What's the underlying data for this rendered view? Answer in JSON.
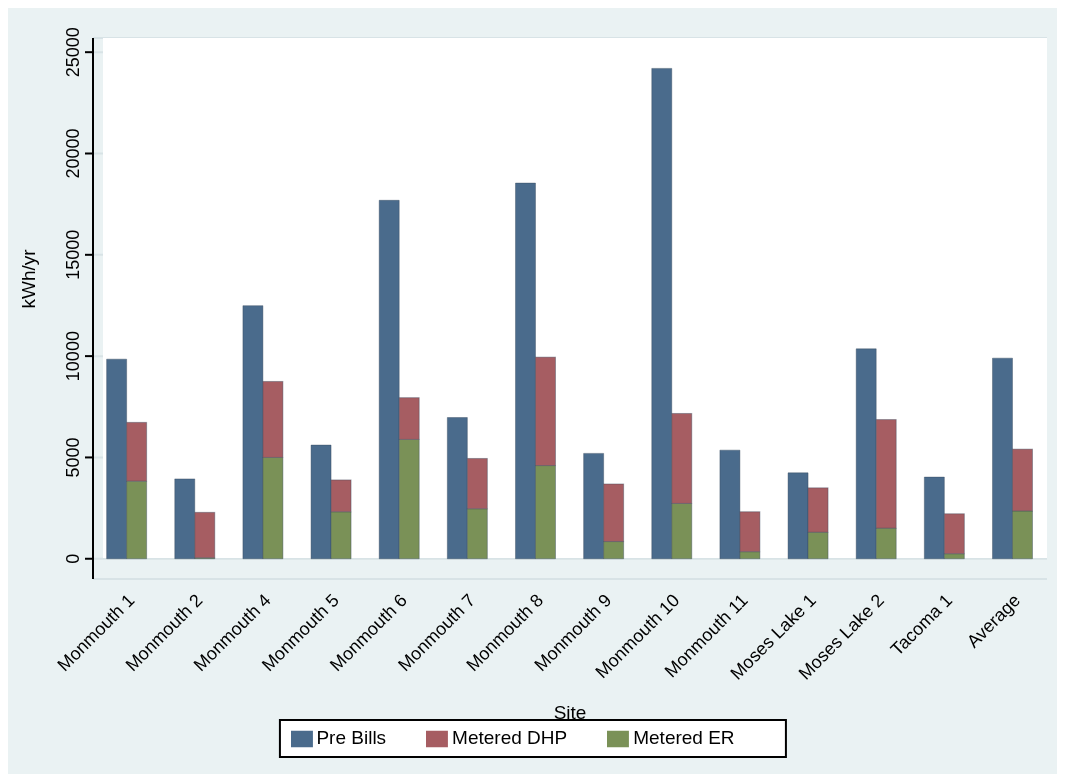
{
  "chart_data": {
    "type": "bar",
    "xlabel": "Site",
    "ylabel": "kWh/yr",
    "categories": [
      "Monmouth 1",
      "Monmouth 2",
      "Monmouth 4",
      "Monmouth 5",
      "Monmouth 6",
      "Monmouth 7",
      "Monmouth 8",
      "Monmouth 9",
      "Monmouth 10",
      "Monmouth 11",
      "Moses Lake 1",
      "Moses Lake 2",
      "Tacoma 1",
      "Average"
    ],
    "series": [
      {
        "name": "Pre Bills",
        "color": "#4a6b8c",
        "values": [
          9850,
          3940,
          12490,
          5610,
          17690,
          6970,
          18540,
          5200,
          24200,
          5360,
          4240,
          10360,
          4030,
          9900
        ]
      },
      {
        "name": "Metered DHP",
        "color": "#a65d62",
        "values": [
          2900,
          2240,
          3750,
          1570,
          2060,
          2480,
          5350,
          2840,
          4440,
          1970,
          2190,
          5360,
          1970,
          3050
        ],
        "base": [
          3830,
          50,
          5000,
          2320,
          5890,
          2470,
          4600,
          850,
          2730,
          350,
          1310,
          1510,
          250,
          2360
        ]
      },
      {
        "name": "Metered ER",
        "color": "#7a9157",
        "values": [
          3830,
          50,
          5000,
          2320,
          5890,
          2470,
          4600,
          850,
          2730,
          350,
          1310,
          1510,
          250,
          2360
        ]
      }
    ],
    "ylim": [
      -1000,
      25700
    ],
    "yticks": [
      0,
      5000,
      10000,
      15000,
      20000,
      25000
    ],
    "grid": "y",
    "legend": "bottom"
  }
}
